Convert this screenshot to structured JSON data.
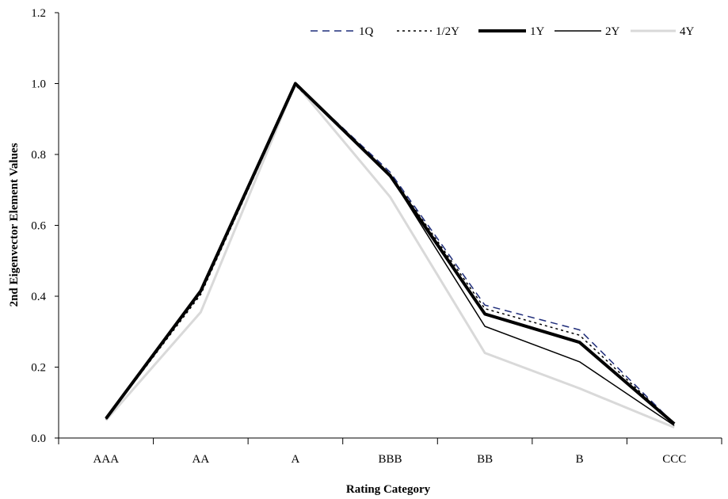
{
  "chart_data": {
    "type": "line",
    "title": "",
    "xlabel": "Rating Category",
    "ylabel": "2nd Eigenvector Element Values",
    "categories": [
      "AAA",
      "AA",
      "A",
      "BBB",
      "BB",
      "B",
      "CCC"
    ],
    "ylim": [
      0.0,
      1.2
    ],
    "yticks": [
      "0.0",
      "0.2",
      "0.4",
      "0.6",
      "0.8",
      "1.0",
      "1.2"
    ],
    "grid": false,
    "legend_position": "top-right",
    "series": [
      {
        "name": "1Q",
        "color": "#1f2d7a",
        "style": "dashed",
        "width": 1.5,
        "values": [
          0.053,
          0.41,
          1.0,
          0.75,
          0.375,
          0.305,
          0.04
        ]
      },
      {
        "name": "1/2Y",
        "color": "#000000",
        "style": "dotted",
        "width": 1.5,
        "values": [
          0.053,
          0.405,
          0.995,
          0.745,
          0.365,
          0.29,
          0.04
        ]
      },
      {
        "name": "1Y",
        "color": "#000000",
        "style": "solid",
        "width": 4,
        "values": [
          0.055,
          0.415,
          1.0,
          0.74,
          0.35,
          0.27,
          0.04
        ]
      },
      {
        "name": "2Y",
        "color": "#000000",
        "style": "solid",
        "width": 1.5,
        "values": [
          0.055,
          0.415,
          1.0,
          0.74,
          0.315,
          0.215,
          0.035
        ]
      },
      {
        "name": "4Y",
        "color": "#d9d9d9",
        "style": "solid",
        "width": 3,
        "values": [
          0.05,
          0.355,
          1.0,
          0.68,
          0.24,
          0.14,
          0.03
        ]
      }
    ]
  }
}
